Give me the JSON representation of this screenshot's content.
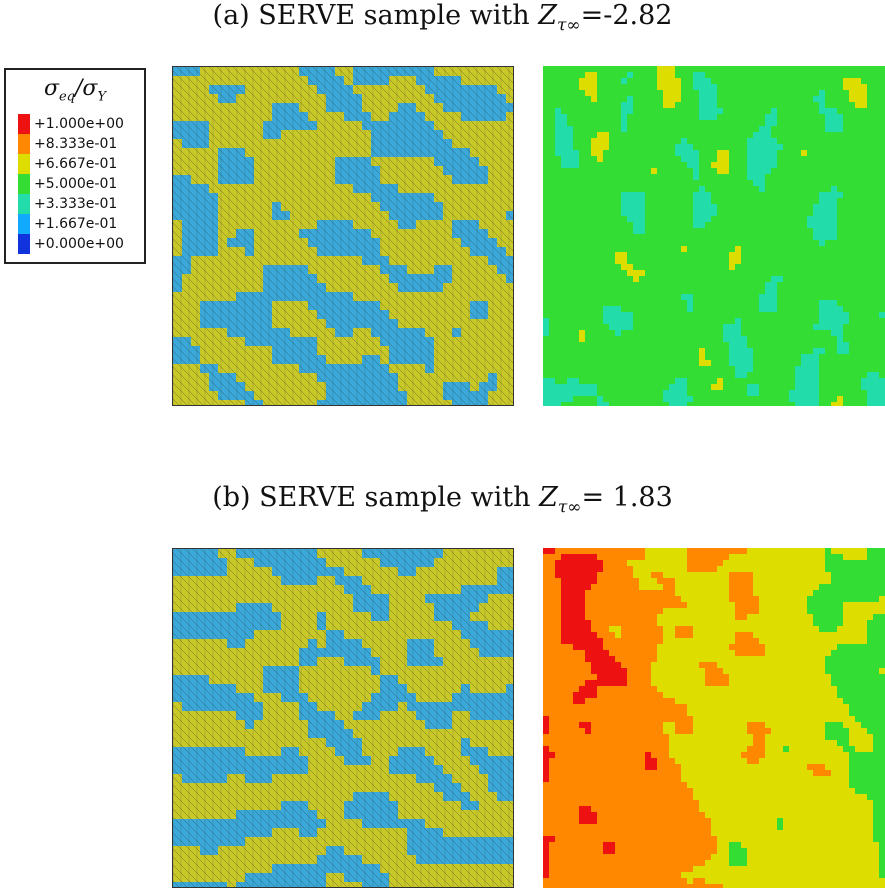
{
  "panels": {
    "a": {
      "caption_prefix": "(a) SERVE sample with ",
      "symbol": "Z",
      "symbol_sub": "τ∞",
      "value": "=-2.82"
    },
    "b": {
      "caption_prefix": "(b) SERVE sample with ",
      "symbol": "Z",
      "symbol_sub": "τ∞",
      "value": "= 1.83"
    }
  },
  "legend": {
    "title_num": "σ",
    "title_num_sub": "eq",
    "title_sep": "/",
    "title_den": "σ",
    "title_den_sub": "Y",
    "entries": [
      {
        "label": "+1.000e+00",
        "color": "#ee1111"
      },
      {
        "label": "+8.333e-01",
        "color": "#ff8800"
      },
      {
        "label": "+6.667e-01",
        "color": "#dddd00"
      },
      {
        "label": "+5.000e-01",
        "color": "#33dd33"
      },
      {
        "label": "+3.333e-01",
        "color": "#22ddaa"
      },
      {
        "label": "+1.667e-01",
        "color": "#11aaff"
      },
      {
        "label": "+0.000e+00",
        "color": "#1133dd"
      }
    ]
  },
  "colors": {
    "phase_yellow": "#c8c828",
    "phase_blue": "#3aa8d8",
    "mesh_line": "#2a2a2a"
  }
}
